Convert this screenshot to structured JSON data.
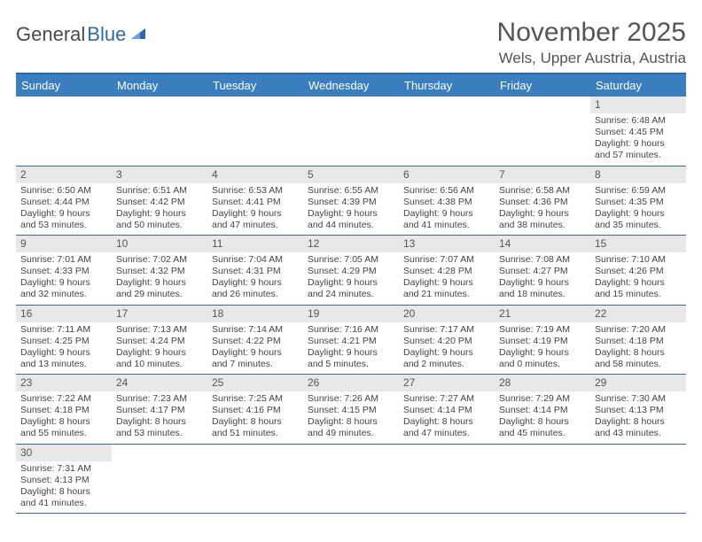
{
  "logo": {
    "text1": "General",
    "text2": "Blue"
  },
  "title": "November 2025",
  "location": "Wels, Upper Austria, Austria",
  "day_headers": [
    "Sunday",
    "Monday",
    "Tuesday",
    "Wednesday",
    "Thursday",
    "Friday",
    "Saturday"
  ],
  "colors": {
    "header_bg": "#3a7ebf",
    "border": "#2f6aa8",
    "daynum_bg": "#e8e8e8"
  },
  "weeks": [
    [
      {
        "empty": true
      },
      {
        "empty": true
      },
      {
        "empty": true
      },
      {
        "empty": true
      },
      {
        "empty": true
      },
      {
        "empty": true
      },
      {
        "n": "1",
        "sr": "Sunrise: 6:48 AM",
        "ss": "Sunset: 4:45 PM",
        "dl": "Daylight: 9 hours and 57 minutes."
      }
    ],
    [
      {
        "n": "2",
        "sr": "Sunrise: 6:50 AM",
        "ss": "Sunset: 4:44 PM",
        "dl": "Daylight: 9 hours and 53 minutes."
      },
      {
        "n": "3",
        "sr": "Sunrise: 6:51 AM",
        "ss": "Sunset: 4:42 PM",
        "dl": "Daylight: 9 hours and 50 minutes."
      },
      {
        "n": "4",
        "sr": "Sunrise: 6:53 AM",
        "ss": "Sunset: 4:41 PM",
        "dl": "Daylight: 9 hours and 47 minutes."
      },
      {
        "n": "5",
        "sr": "Sunrise: 6:55 AM",
        "ss": "Sunset: 4:39 PM",
        "dl": "Daylight: 9 hours and 44 minutes."
      },
      {
        "n": "6",
        "sr": "Sunrise: 6:56 AM",
        "ss": "Sunset: 4:38 PM",
        "dl": "Daylight: 9 hours and 41 minutes."
      },
      {
        "n": "7",
        "sr": "Sunrise: 6:58 AM",
        "ss": "Sunset: 4:36 PM",
        "dl": "Daylight: 9 hours and 38 minutes."
      },
      {
        "n": "8",
        "sr": "Sunrise: 6:59 AM",
        "ss": "Sunset: 4:35 PM",
        "dl": "Daylight: 9 hours and 35 minutes."
      }
    ],
    [
      {
        "n": "9",
        "sr": "Sunrise: 7:01 AM",
        "ss": "Sunset: 4:33 PM",
        "dl": "Daylight: 9 hours and 32 minutes."
      },
      {
        "n": "10",
        "sr": "Sunrise: 7:02 AM",
        "ss": "Sunset: 4:32 PM",
        "dl": "Daylight: 9 hours and 29 minutes."
      },
      {
        "n": "11",
        "sr": "Sunrise: 7:04 AM",
        "ss": "Sunset: 4:31 PM",
        "dl": "Daylight: 9 hours and 26 minutes."
      },
      {
        "n": "12",
        "sr": "Sunrise: 7:05 AM",
        "ss": "Sunset: 4:29 PM",
        "dl": "Daylight: 9 hours and 24 minutes."
      },
      {
        "n": "13",
        "sr": "Sunrise: 7:07 AM",
        "ss": "Sunset: 4:28 PM",
        "dl": "Daylight: 9 hours and 21 minutes."
      },
      {
        "n": "14",
        "sr": "Sunrise: 7:08 AM",
        "ss": "Sunset: 4:27 PM",
        "dl": "Daylight: 9 hours and 18 minutes."
      },
      {
        "n": "15",
        "sr": "Sunrise: 7:10 AM",
        "ss": "Sunset: 4:26 PM",
        "dl": "Daylight: 9 hours and 15 minutes."
      }
    ],
    [
      {
        "n": "16",
        "sr": "Sunrise: 7:11 AM",
        "ss": "Sunset: 4:25 PM",
        "dl": "Daylight: 9 hours and 13 minutes."
      },
      {
        "n": "17",
        "sr": "Sunrise: 7:13 AM",
        "ss": "Sunset: 4:24 PM",
        "dl": "Daylight: 9 hours and 10 minutes."
      },
      {
        "n": "18",
        "sr": "Sunrise: 7:14 AM",
        "ss": "Sunset: 4:22 PM",
        "dl": "Daylight: 9 hours and 7 minutes."
      },
      {
        "n": "19",
        "sr": "Sunrise: 7:16 AM",
        "ss": "Sunset: 4:21 PM",
        "dl": "Daylight: 9 hours and 5 minutes."
      },
      {
        "n": "20",
        "sr": "Sunrise: 7:17 AM",
        "ss": "Sunset: 4:20 PM",
        "dl": "Daylight: 9 hours and 2 minutes."
      },
      {
        "n": "21",
        "sr": "Sunrise: 7:19 AM",
        "ss": "Sunset: 4:19 PM",
        "dl": "Daylight: 9 hours and 0 minutes."
      },
      {
        "n": "22",
        "sr": "Sunrise: 7:20 AM",
        "ss": "Sunset: 4:18 PM",
        "dl": "Daylight: 8 hours and 58 minutes."
      }
    ],
    [
      {
        "n": "23",
        "sr": "Sunrise: 7:22 AM",
        "ss": "Sunset: 4:18 PM",
        "dl": "Daylight: 8 hours and 55 minutes."
      },
      {
        "n": "24",
        "sr": "Sunrise: 7:23 AM",
        "ss": "Sunset: 4:17 PM",
        "dl": "Daylight: 8 hours and 53 minutes."
      },
      {
        "n": "25",
        "sr": "Sunrise: 7:25 AM",
        "ss": "Sunset: 4:16 PM",
        "dl": "Daylight: 8 hours and 51 minutes."
      },
      {
        "n": "26",
        "sr": "Sunrise: 7:26 AM",
        "ss": "Sunset: 4:15 PM",
        "dl": "Daylight: 8 hours and 49 minutes."
      },
      {
        "n": "27",
        "sr": "Sunrise: 7:27 AM",
        "ss": "Sunset: 4:14 PM",
        "dl": "Daylight: 8 hours and 47 minutes."
      },
      {
        "n": "28",
        "sr": "Sunrise: 7:29 AM",
        "ss": "Sunset: 4:14 PM",
        "dl": "Daylight: 8 hours and 45 minutes."
      },
      {
        "n": "29",
        "sr": "Sunrise: 7:30 AM",
        "ss": "Sunset: 4:13 PM",
        "dl": "Daylight: 8 hours and 43 minutes."
      }
    ],
    [
      {
        "n": "30",
        "sr": "Sunrise: 7:31 AM",
        "ss": "Sunset: 4:13 PM",
        "dl": "Daylight: 8 hours and 41 minutes."
      },
      {
        "empty": true
      },
      {
        "empty": true
      },
      {
        "empty": true
      },
      {
        "empty": true
      },
      {
        "empty": true
      },
      {
        "empty": true
      }
    ]
  ]
}
